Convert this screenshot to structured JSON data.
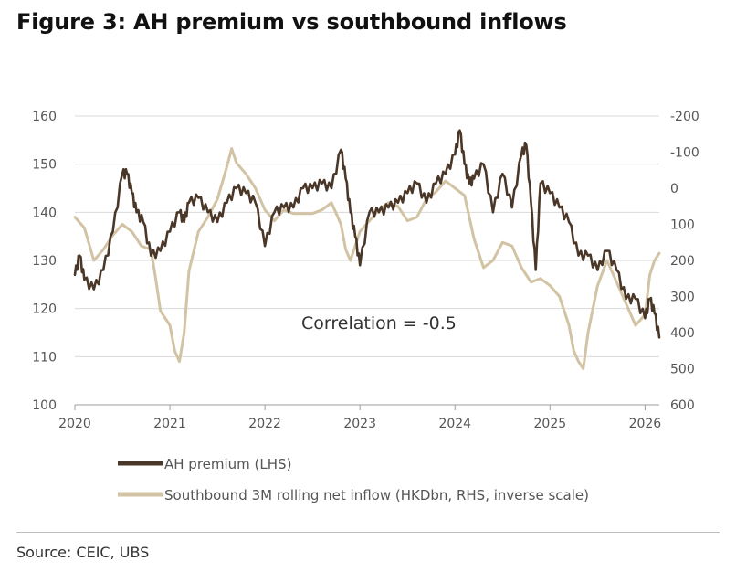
{
  "figure": {
    "title": "Figure 3: AH premium vs southbound inflows",
    "source": "Source: CEIC, UBS"
  },
  "chart_data": {
    "type": "line",
    "title": "Figure 3: AH premium vs southbound inflows",
    "annotation": "Correlation = -0.5",
    "x_ticks": [
      "2020",
      "2021",
      "2022",
      "2023",
      "2024",
      "2025",
      "2026"
    ],
    "x_range": [
      2020.0,
      2026.15
    ],
    "left_axis": {
      "ylim": [
        100,
        160
      ],
      "ticks": [
        "160",
        "150",
        "140",
        "130",
        "120",
        "110",
        "100"
      ]
    },
    "right_axis": {
      "ylim": [
        -200,
        600
      ],
      "inverse": true,
      "ticks": [
        "-200",
        "-100",
        "0",
        "100",
        "200",
        "300",
        "400",
        "500",
        "600"
      ]
    },
    "legend_position": "bottom",
    "series": [
      {
        "name": "AH premium (LHS)",
        "axis": "left",
        "color": "#4a3728",
        "x": [
          2020.0,
          2020.05,
          2020.1,
          2020.2,
          2020.3,
          2020.4,
          2020.5,
          2020.55,
          2020.6,
          2020.65,
          2020.72,
          2020.8,
          2020.9,
          2021.0,
          2021.1,
          2021.15,
          2021.2,
          2021.3,
          2021.4,
          2021.5,
          2021.6,
          2021.7,
          2021.8,
          2021.9,
          2022.0,
          2022.1,
          2022.2,
          2022.3,
          2022.4,
          2022.5,
          2022.6,
          2022.7,
          2022.8,
          2022.85,
          2022.9,
          2022.95,
          2023.0,
          2023.1,
          2023.2,
          2023.3,
          2023.4,
          2023.5,
          2023.6,
          2023.7,
          2023.8,
          2023.9,
          2024.0,
          2024.05,
          2024.1,
          2024.15,
          2024.2,
          2024.3,
          2024.4,
          2024.5,
          2024.6,
          2024.7,
          2024.75,
          2024.8,
          2024.85,
          2024.9,
          2025.0,
          2025.1,
          2025.2,
          2025.3,
          2025.4,
          2025.5,
          2025.6,
          2025.7,
          2025.8,
          2025.9,
          2026.0,
          2026.05,
          2026.1,
          2026.15
        ],
        "values": [
          127,
          131,
          126,
          124,
          128,
          136,
          148,
          148,
          144,
          140,
          138,
          131,
          132,
          136,
          140,
          138,
          142,
          143,
          140,
          138,
          142,
          145,
          144,
          142,
          133,
          140,
          141,
          141,
          145,
          145,
          146,
          145,
          153,
          147,
          140,
          135,
          129,
          140,
          140,
          141,
          142,
          144,
          146,
          142,
          146,
          148,
          152,
          157,
          150,
          146,
          147,
          150,
          140,
          148,
          141,
          152,
          154,
          142,
          128,
          146,
          144,
          141,
          138,
          131,
          131,
          128,
          132,
          128,
          122,
          122,
          118,
          122,
          119,
          114
        ]
      },
      {
        "name": "Southbound 3M rolling net inflow (HKDbn, RHS, inverse scale)",
        "axis": "right",
        "color": "#d2c3a4",
        "x": [
          2020.0,
          2020.1,
          2020.2,
          2020.3,
          2020.4,
          2020.5,
          2020.6,
          2020.7,
          2020.8,
          2020.85,
          2020.9,
          2021.0,
          2021.05,
          2021.1,
          2021.15,
          2021.2,
          2021.3,
          2021.4,
          2021.5,
          2021.6,
          2021.65,
          2021.7,
          2021.8,
          2021.9,
          2022.0,
          2022.1,
          2022.2,
          2022.3,
          2022.4,
          2022.5,
          2022.6,
          2022.7,
          2022.8,
          2022.85,
          2022.9,
          2023.0,
          2023.1,
          2023.2,
          2023.3,
          2023.4,
          2023.5,
          2023.6,
          2023.7,
          2023.8,
          2023.9,
          2024.0,
          2024.1,
          2024.2,
          2024.3,
          2024.4,
          2024.5,
          2024.6,
          2024.7,
          2024.8,
          2024.9,
          2025.0,
          2025.1,
          2025.2,
          2025.25,
          2025.3,
          2025.35,
          2025.4,
          2025.5,
          2025.6,
          2025.7,
          2025.8,
          2025.9,
          2026.0,
          2026.05,
          2026.1,
          2026.15
        ],
        "values": [
          80,
          110,
          200,
          170,
          130,
          100,
          120,
          160,
          170,
          250,
          340,
          380,
          450,
          480,
          400,
          230,
          120,
          80,
          30,
          -60,
          -110,
          -70,
          -40,
          0,
          60,
          90,
          60,
          70,
          70,
          70,
          60,
          40,
          100,
          170,
          200,
          120,
          90,
          60,
          40,
          50,
          90,
          80,
          30,
          10,
          -20,
          0,
          20,
          140,
          220,
          200,
          150,
          160,
          220,
          260,
          250,
          270,
          300,
          380,
          450,
          480,
          500,
          400,
          270,
          200,
          260,
          320,
          380,
          350,
          240,
          200,
          180
        ]
      }
    ]
  }
}
